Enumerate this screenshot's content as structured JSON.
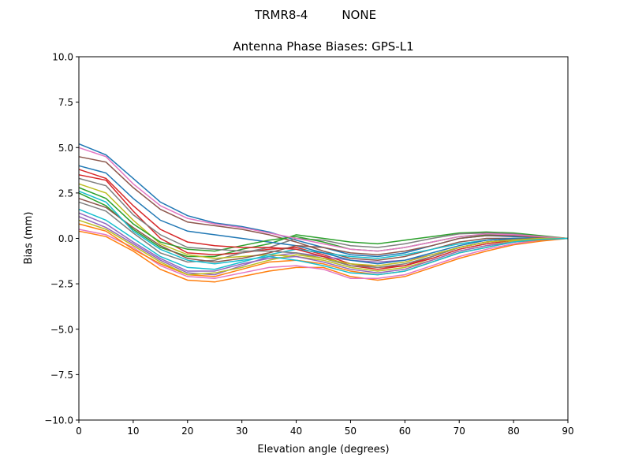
{
  "suptitle": "TRMR8-4         NONE",
  "chart_data": {
    "type": "line",
    "title": "Antenna Phase Biases: GPS-L1",
    "xlabel": "Elevation angle (degrees)",
    "ylabel": "Bias (mm)",
    "xlim": [
      0,
      90
    ],
    "ylim": [
      -10,
      10
    ],
    "xticks": [
      "0",
      "10",
      "20",
      "30",
      "40",
      "50",
      "60",
      "70",
      "80",
      "90"
    ],
    "xtick_values": [
      0,
      10,
      20,
      30,
      40,
      50,
      60,
      70,
      80,
      90
    ],
    "yticks": [
      "10.0",
      "7.5",
      "5.0",
      "2.5",
      "0.0",
      "−2.5",
      "−5.0",
      "−7.5",
      "−10.0"
    ],
    "ytick_values": [
      10,
      7.5,
      5,
      2.5,
      0,
      -2.5,
      -5,
      -7.5,
      -10
    ],
    "grid": false,
    "colors": [
      "#1f77b4",
      "#ff7f0e",
      "#2ca02c",
      "#d62728",
      "#9467bd",
      "#8c564b",
      "#e377c2",
      "#7f7f7f",
      "#bcbd22",
      "#17becf"
    ],
    "x": [
      0,
      5,
      10,
      15,
      20,
      25,
      30,
      35,
      40,
      45,
      50,
      55,
      60,
      65,
      70,
      75,
      80,
      85,
      90
    ],
    "series": [
      {
        "values": [
          5.2,
          4.6,
          3.3,
          2.0,
          1.25,
          0.85,
          0.65,
          0.35,
          -0.1,
          -0.5,
          -0.9,
          -1.0,
          -0.8,
          -0.4,
          0.0,
          0.15,
          0.1,
          0.05,
          0
        ]
      },
      {
        "values": [
          0.4,
          0.1,
          -0.7,
          -1.7,
          -2.3,
          -2.4,
          -2.1,
          -1.8,
          -1.6,
          -1.6,
          -2.1,
          -2.3,
          -2.1,
          -1.6,
          -1.1,
          -0.7,
          -0.35,
          -0.15,
          0
        ]
      },
      {
        "values": [
          2.5,
          1.8,
          0.5,
          -0.5,
          -1.0,
          -1.0,
          -0.6,
          -0.3,
          0.2,
          0.0,
          -0.2,
          -0.3,
          -0.1,
          0.1,
          0.3,
          0.35,
          0.3,
          0.15,
          0
        ]
      },
      {
        "values": [
          3.5,
          3.2,
          1.5,
          0.0,
          -0.8,
          -0.9,
          -0.8,
          -0.6,
          -0.5,
          -0.9,
          -1.4,
          -1.6,
          -1.5,
          -1.1,
          -0.6,
          -0.3,
          -0.1,
          -0.05,
          0
        ]
      },
      {
        "values": [
          1.2,
          0.6,
          -0.3,
          -1.2,
          -1.9,
          -2.0,
          -1.5,
          -1.0,
          -0.8,
          -1.0,
          -1.2,
          -1.3,
          -1.2,
          -0.9,
          -0.5,
          -0.2,
          -0.05,
          0,
          0
        ]
      },
      {
        "values": [
          4.5,
          4.2,
          2.8,
          1.6,
          0.9,
          0.7,
          0.5,
          0.2,
          -0.2,
          -0.7,
          -1.1,
          -1.2,
          -1.0,
          -0.6,
          -0.2,
          0.0,
          0.0,
          0.0,
          0
        ]
      },
      {
        "values": [
          0.5,
          0.2,
          -0.5,
          -1.5,
          -2.1,
          -2.2,
          -1.9,
          -1.6,
          -1.5,
          -1.7,
          -2.2,
          -2.2,
          -2.0,
          -1.5,
          -1.0,
          -0.6,
          -0.3,
          -0.1,
          0
        ]
      },
      {
        "values": [
          2.0,
          1.5,
          0.3,
          -0.8,
          -1.3,
          -1.2,
          -0.8,
          -0.5,
          0.0,
          -0.1,
          -0.4,
          -0.5,
          -0.3,
          0.0,
          0.25,
          0.3,
          0.25,
          0.1,
          0
        ]
      },
      {
        "values": [
          3.0,
          2.5,
          1.0,
          -0.3,
          -0.9,
          -1.1,
          -1.0,
          -0.9,
          -1.0,
          -1.2,
          -1.6,
          -1.8,
          -1.6,
          -1.2,
          -0.7,
          -0.4,
          -0.15,
          -0.05,
          0
        ]
      },
      {
        "values": [
          1.6,
          1.0,
          0.0,
          -1.0,
          -1.6,
          -1.7,
          -1.3,
          -0.9,
          -0.6,
          -0.8,
          -1.0,
          -1.1,
          -0.9,
          -0.6,
          -0.3,
          -0.1,
          0.0,
          0.0,
          0
        ]
      },
      {
        "values": [
          4.0,
          3.6,
          2.2,
          1.0,
          0.4,
          0.2,
          0.0,
          -0.2,
          -0.4,
          -0.8,
          -1.2,
          -1.4,
          -1.2,
          -0.8,
          -0.4,
          -0.1,
          0.0,
          0.0,
          0
        ]
      },
      {
        "values": [
          0.8,
          0.4,
          -0.6,
          -1.4,
          -2.0,
          -2.1,
          -1.7,
          -1.3,
          -1.2,
          -1.4,
          -1.8,
          -2.0,
          -1.8,
          -1.3,
          -0.8,
          -0.5,
          -0.2,
          -0.1,
          0
        ]
      },
      {
        "values": [
          2.8,
          2.2,
          0.8,
          -0.2,
          -0.6,
          -0.7,
          -0.4,
          -0.1,
          0.1,
          -0.2,
          -0.6,
          -0.7,
          -0.5,
          -0.2,
          0.1,
          0.2,
          0.15,
          0.05,
          0
        ]
      },
      {
        "values": [
          3.8,
          3.3,
          1.8,
          0.5,
          -0.2,
          -0.4,
          -0.5,
          -0.5,
          -0.6,
          -1.0,
          -1.5,
          -1.7,
          -1.5,
          -1.0,
          -0.5,
          -0.2,
          -0.05,
          0,
          0
        ]
      },
      {
        "values": [
          1.4,
          0.8,
          -0.2,
          -1.1,
          -1.8,
          -1.8,
          -1.4,
          -1.1,
          -1.0,
          -1.3,
          -1.7,
          -1.9,
          -1.7,
          -1.2,
          -0.7,
          -0.4,
          -0.2,
          -0.05,
          0
        ]
      },
      {
        "values": [
          2.2,
          1.7,
          0.6,
          -0.4,
          -1.1,
          -1.3,
          -1.1,
          -0.8,
          -0.4,
          -0.5,
          -0.8,
          -0.9,
          -0.7,
          -0.4,
          0.0,
          0.15,
          0.15,
          0.05,
          0
        ]
      },
      {
        "values": [
          5.0,
          4.5,
          3.0,
          1.8,
          1.1,
          0.8,
          0.6,
          0.3,
          0.0,
          -0.3,
          -0.6,
          -0.7,
          -0.5,
          -0.2,
          0.1,
          0.25,
          0.2,
          0.1,
          0
        ]
      },
      {
        "values": [
          3.3,
          2.9,
          1.3,
          0.2,
          -0.5,
          -0.6,
          -0.7,
          -0.7,
          -0.8,
          -1.1,
          -1.5,
          -1.6,
          -1.4,
          -1.0,
          -0.5,
          -0.2,
          -0.05,
          0,
          0
        ]
      },
      {
        "values": [
          1.0,
          0.5,
          -0.4,
          -1.3,
          -2.0,
          -1.9,
          -1.6,
          -1.2,
          -0.9,
          -1.1,
          -1.4,
          -1.5,
          -1.3,
          -0.9,
          -0.5,
          -0.2,
          -0.1,
          0,
          0
        ]
      },
      {
        "values": [
          2.6,
          2.0,
          0.4,
          -0.6,
          -1.2,
          -1.4,
          -1.2,
          -1.0,
          -1.2,
          -1.5,
          -1.9,
          -2.0,
          -1.8,
          -1.3,
          -0.8,
          -0.5,
          -0.2,
          -0.05,
          0
        ]
      }
    ]
  }
}
